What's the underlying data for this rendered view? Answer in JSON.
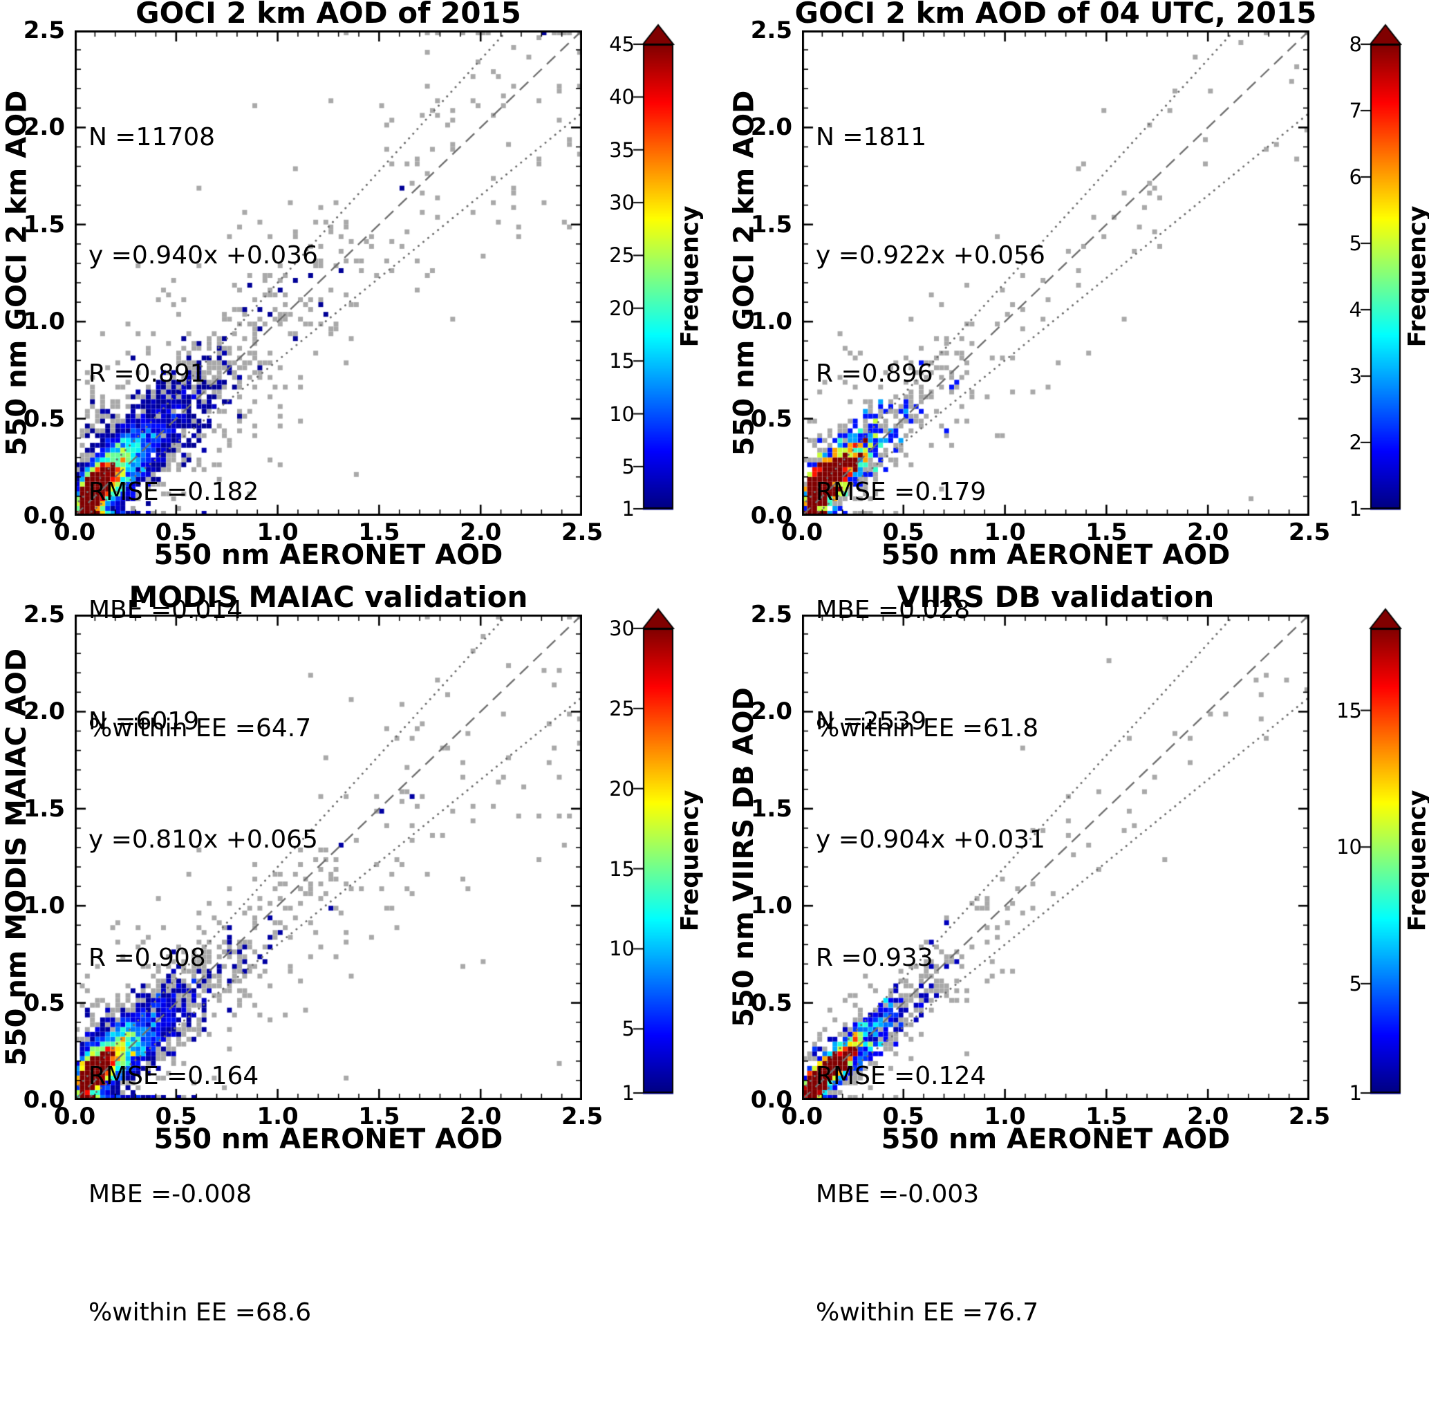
{
  "figure": {
    "background": "#ffffff",
    "colors": {
      "point_single": "#a9a9a9",
      "reference_line": "#6f6f6f",
      "frame": "#000000",
      "text": "#000000"
    }
  },
  "chart_data": [
    {
      "type": "density_scatter",
      "title": "GOCI 2 km AOD of 2015",
      "xlabel": "550 nm AERONET AOD",
      "ylabel": "550 nm GOCI 2 km AOD",
      "xlim": [
        0,
        2.5
      ],
      "ylim": [
        0,
        2.5
      ],
      "xtick_labels": [
        "0.0",
        "0.5",
        "1.0",
        "1.5",
        "2.0",
        "2.5"
      ],
      "ytick_labels": [
        "0.0",
        "0.5",
        "1.0",
        "1.5",
        "2.0",
        "2.5"
      ],
      "minor_tick_step": 0.1,
      "stats": [
        "N =11708",
        "y =0.940x +0.036",
        "R =0.891",
        "RMSE =0.182",
        "MBE =0.014",
        "%within EE =64.7"
      ],
      "regression": {
        "N": 11708,
        "slope": 0.94,
        "intercept": 0.036,
        "R": 0.891,
        "RMSE": 0.182,
        "MBE": 0.014,
        "percent_within_EE": 64.7
      },
      "reference_lines": {
        "identity": {
          "slope": 1,
          "intercept": 0,
          "style": "dashed"
        },
        "ee_upper": {
          "slope": 1.15,
          "intercept": 0.05,
          "style": "dotted"
        },
        "ee_lower": {
          "slope": 0.85,
          "intercept": -0.05,
          "style": "dotted"
        }
      },
      "colorbar": {
        "label": "Frequency",
        "vmin": 1,
        "vmax": 45,
        "ticks": [
          1,
          5,
          10,
          15,
          20,
          25,
          30,
          35,
          40,
          45
        ],
        "colormap": "jet",
        "extend": "max"
      },
      "cloud": {
        "n_draw": 7000,
        "seed": 11708,
        "x_mu": -2.0,
        "x_sigma": 0.85,
        "noise_base": 0.05,
        "noise_prop": 0.17,
        "outlier_frac": 0.08,
        "uniform_frac": 0.035
      }
    },
    {
      "type": "density_scatter",
      "title": "GOCI 2 km AOD of 04 UTC, 2015",
      "xlabel": "550 nm AERONET AOD",
      "ylabel": "550 nm GOCI 2 km AOD",
      "xlim": [
        0,
        2.5
      ],
      "ylim": [
        0,
        2.5
      ],
      "xtick_labels": [
        "0.0",
        "0.5",
        "1.0",
        "1.5",
        "2.0",
        "2.5"
      ],
      "ytick_labels": [
        "0.0",
        "0.5",
        "1.0",
        "1.5",
        "2.0",
        "2.5"
      ],
      "minor_tick_step": 0.1,
      "stats": [
        "N =1811",
        "y =0.922x +0.056",
        "R =0.896",
        "RMSE =0.179",
        "MBE =0.028",
        "%within EE =61.8"
      ],
      "regression": {
        "N": 1811,
        "slope": 0.922,
        "intercept": 0.056,
        "R": 0.896,
        "RMSE": 0.179,
        "MBE": 0.028,
        "percent_within_EE": 61.8
      },
      "reference_lines": {
        "identity": {
          "slope": 1,
          "intercept": 0,
          "style": "dashed"
        },
        "ee_upper": {
          "slope": 1.15,
          "intercept": 0.05,
          "style": "dotted"
        },
        "ee_lower": {
          "slope": 0.85,
          "intercept": -0.05,
          "style": "dotted"
        }
      },
      "colorbar": {
        "label": "Frequency",
        "vmin": 1,
        "vmax": 8,
        "ticks": [
          1,
          2,
          3,
          4,
          5,
          6,
          7,
          8
        ],
        "colormap": "jet",
        "extend": "max"
      },
      "cloud": {
        "n_draw": 1811,
        "seed": 1811,
        "x_mu": -2.0,
        "x_sigma": 0.85,
        "noise_base": 0.05,
        "noise_prop": 0.16,
        "outlier_frac": 0.08,
        "uniform_frac": 0.03
      }
    },
    {
      "type": "density_scatter",
      "title": "MODIS MAIAC validation",
      "xlabel": "550 nm AERONET AOD",
      "ylabel": "550 nm MODIS MAIAC AOD",
      "xlim": [
        0,
        2.5
      ],
      "ylim": [
        0,
        2.5
      ],
      "xtick_labels": [
        "0.0",
        "0.5",
        "1.0",
        "1.5",
        "2.0",
        "2.5"
      ],
      "ytick_labels": [
        "0.0",
        "0.5",
        "1.0",
        "1.5",
        "2.0",
        "2.5"
      ],
      "minor_tick_step": 0.1,
      "stats": [
        "N =6019",
        "y =0.810x +0.065",
        "R =0.908",
        "RMSE =0.164",
        "MBE =-0.008",
        "%within EE =68.6"
      ],
      "regression": {
        "N": 6019,
        "slope": 0.81,
        "intercept": 0.065,
        "R": 0.908,
        "RMSE": 0.164,
        "MBE": -0.008,
        "percent_within_EE": 68.6
      },
      "reference_lines": {
        "identity": {
          "slope": 1,
          "intercept": 0,
          "style": "dashed"
        },
        "ee_upper": {
          "slope": 1.15,
          "intercept": 0.05,
          "style": "dotted"
        },
        "ee_lower": {
          "slope": 0.85,
          "intercept": -0.05,
          "style": "dotted"
        }
      },
      "colorbar": {
        "label": "Frequency",
        "vmin": 1,
        "vmax": 30,
        "ticks": [
          1,
          5,
          10,
          15,
          20,
          25,
          30
        ],
        "colormap": "jet",
        "extend": "max"
      },
      "cloud": {
        "n_draw": 4200,
        "seed": 6019,
        "x_mu": -1.95,
        "x_sigma": 0.9,
        "noise_base": 0.045,
        "noise_prop": 0.16,
        "outlier_frac": 0.09,
        "uniform_frac": 0.03
      }
    },
    {
      "type": "density_scatter",
      "title": "VIIRS DB validation",
      "xlabel": "550 nm AERONET AOD",
      "ylabel": "550 nm VIIRS DB AOD",
      "xlim": [
        0,
        2.5
      ],
      "ylim": [
        0,
        2.5
      ],
      "xtick_labels": [
        "0.0",
        "0.5",
        "1.0",
        "1.5",
        "2.0",
        "2.5"
      ],
      "ytick_labels": [
        "0.0",
        "0.5",
        "1.0",
        "1.5",
        "2.0",
        "2.5"
      ],
      "minor_tick_step": 0.1,
      "stats": [
        "N =2539",
        "y =0.904x +0.031",
        "R =0.933",
        "RMSE =0.124",
        "MBE =-0.003",
        "%within EE =76.7"
      ],
      "regression": {
        "N": 2539,
        "slope": 0.904,
        "intercept": 0.031,
        "R": 0.933,
        "RMSE": 0.124,
        "MBE": -0.003,
        "percent_within_EE": 76.7
      },
      "reference_lines": {
        "identity": {
          "slope": 1,
          "intercept": 0,
          "style": "dashed"
        },
        "ee_upper": {
          "slope": 1.15,
          "intercept": 0.05,
          "style": "dotted"
        },
        "ee_lower": {
          "slope": 0.85,
          "intercept": -0.05,
          "style": "dotted"
        }
      },
      "colorbar": {
        "label": "Frequency",
        "vmin": 1,
        "vmax": 18,
        "ticks": [
          1,
          5,
          10,
          15
        ],
        "colormap": "jet",
        "extend": "max"
      },
      "cloud": {
        "n_draw": 2539,
        "seed": 2539,
        "x_mu": -2.05,
        "x_sigma": 0.85,
        "noise_base": 0.032,
        "noise_prop": 0.11,
        "outlier_frac": 0.06,
        "uniform_frac": 0.02
      }
    }
  ]
}
